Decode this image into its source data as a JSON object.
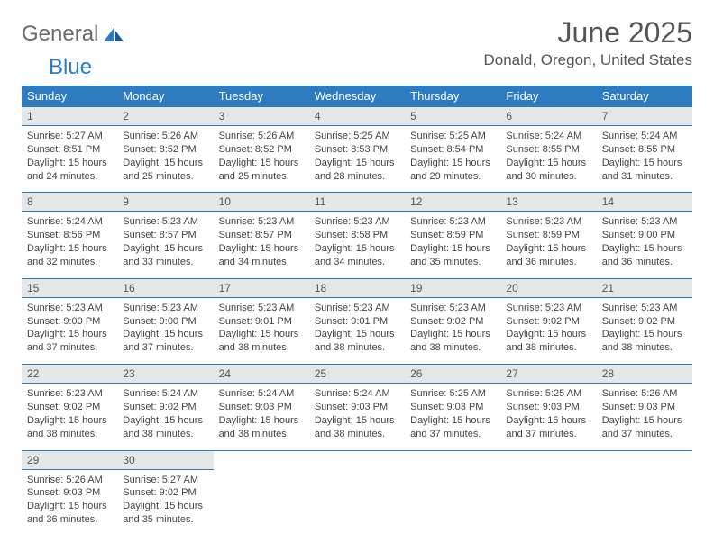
{
  "logo": {
    "word1": "General",
    "word2": "Blue"
  },
  "title": "June 2025",
  "location": "Donald, Oregon, United States",
  "colors": {
    "header_bg": "#2d7bc0",
    "header_text": "#ffffff",
    "daynum_bg": "#e6e6e6",
    "rule": "#2d7bc0",
    "body_text": "#444",
    "title_text": "#555"
  },
  "day_headers": [
    "Sunday",
    "Monday",
    "Tuesday",
    "Wednesday",
    "Thursday",
    "Friday",
    "Saturday"
  ],
  "weeks": [
    {
      "nums": [
        "1",
        "2",
        "3",
        "4",
        "5",
        "6",
        "7"
      ],
      "cells": [
        {
          "sunrise": "Sunrise: 5:27 AM",
          "sunset": "Sunset: 8:51 PM",
          "day1": "Daylight: 15 hours",
          "day2": "and 24 minutes."
        },
        {
          "sunrise": "Sunrise: 5:26 AM",
          "sunset": "Sunset: 8:52 PM",
          "day1": "Daylight: 15 hours",
          "day2": "and 25 minutes."
        },
        {
          "sunrise": "Sunrise: 5:26 AM",
          "sunset": "Sunset: 8:52 PM",
          "day1": "Daylight: 15 hours",
          "day2": "and 25 minutes."
        },
        {
          "sunrise": "Sunrise: 5:25 AM",
          "sunset": "Sunset: 8:53 PM",
          "day1": "Daylight: 15 hours",
          "day2": "and 28 minutes."
        },
        {
          "sunrise": "Sunrise: 5:25 AM",
          "sunset": "Sunset: 8:54 PM",
          "day1": "Daylight: 15 hours",
          "day2": "and 29 minutes."
        },
        {
          "sunrise": "Sunrise: 5:24 AM",
          "sunset": "Sunset: 8:55 PM",
          "day1": "Daylight: 15 hours",
          "day2": "and 30 minutes."
        },
        {
          "sunrise": "Sunrise: 5:24 AM",
          "sunset": "Sunset: 8:55 PM",
          "day1": "Daylight: 15 hours",
          "day2": "and 31 minutes."
        }
      ]
    },
    {
      "nums": [
        "8",
        "9",
        "10",
        "11",
        "12",
        "13",
        "14"
      ],
      "cells": [
        {
          "sunrise": "Sunrise: 5:24 AM",
          "sunset": "Sunset: 8:56 PM",
          "day1": "Daylight: 15 hours",
          "day2": "and 32 minutes."
        },
        {
          "sunrise": "Sunrise: 5:23 AM",
          "sunset": "Sunset: 8:57 PM",
          "day1": "Daylight: 15 hours",
          "day2": "and 33 minutes."
        },
        {
          "sunrise": "Sunrise: 5:23 AM",
          "sunset": "Sunset: 8:57 PM",
          "day1": "Daylight: 15 hours",
          "day2": "and 34 minutes."
        },
        {
          "sunrise": "Sunrise: 5:23 AM",
          "sunset": "Sunset: 8:58 PM",
          "day1": "Daylight: 15 hours",
          "day2": "and 34 minutes."
        },
        {
          "sunrise": "Sunrise: 5:23 AM",
          "sunset": "Sunset: 8:59 PM",
          "day1": "Daylight: 15 hours",
          "day2": "and 35 minutes."
        },
        {
          "sunrise": "Sunrise: 5:23 AM",
          "sunset": "Sunset: 8:59 PM",
          "day1": "Daylight: 15 hours",
          "day2": "and 36 minutes."
        },
        {
          "sunrise": "Sunrise: 5:23 AM",
          "sunset": "Sunset: 9:00 PM",
          "day1": "Daylight: 15 hours",
          "day2": "and 36 minutes."
        }
      ]
    },
    {
      "nums": [
        "15",
        "16",
        "17",
        "18",
        "19",
        "20",
        "21"
      ],
      "cells": [
        {
          "sunrise": "Sunrise: 5:23 AM",
          "sunset": "Sunset: 9:00 PM",
          "day1": "Daylight: 15 hours",
          "day2": "and 37 minutes."
        },
        {
          "sunrise": "Sunrise: 5:23 AM",
          "sunset": "Sunset: 9:00 PM",
          "day1": "Daylight: 15 hours",
          "day2": "and 37 minutes."
        },
        {
          "sunrise": "Sunrise: 5:23 AM",
          "sunset": "Sunset: 9:01 PM",
          "day1": "Daylight: 15 hours",
          "day2": "and 38 minutes."
        },
        {
          "sunrise": "Sunrise: 5:23 AM",
          "sunset": "Sunset: 9:01 PM",
          "day1": "Daylight: 15 hours",
          "day2": "and 38 minutes."
        },
        {
          "sunrise": "Sunrise: 5:23 AM",
          "sunset": "Sunset: 9:02 PM",
          "day1": "Daylight: 15 hours",
          "day2": "and 38 minutes."
        },
        {
          "sunrise": "Sunrise: 5:23 AM",
          "sunset": "Sunset: 9:02 PM",
          "day1": "Daylight: 15 hours",
          "day2": "and 38 minutes."
        },
        {
          "sunrise": "Sunrise: 5:23 AM",
          "sunset": "Sunset: 9:02 PM",
          "day1": "Daylight: 15 hours",
          "day2": "and 38 minutes."
        }
      ]
    },
    {
      "nums": [
        "22",
        "23",
        "24",
        "25",
        "26",
        "27",
        "28"
      ],
      "cells": [
        {
          "sunrise": "Sunrise: 5:23 AM",
          "sunset": "Sunset: 9:02 PM",
          "day1": "Daylight: 15 hours",
          "day2": "and 38 minutes."
        },
        {
          "sunrise": "Sunrise: 5:24 AM",
          "sunset": "Sunset: 9:02 PM",
          "day1": "Daylight: 15 hours",
          "day2": "and 38 minutes."
        },
        {
          "sunrise": "Sunrise: 5:24 AM",
          "sunset": "Sunset: 9:03 PM",
          "day1": "Daylight: 15 hours",
          "day2": "and 38 minutes."
        },
        {
          "sunrise": "Sunrise: 5:24 AM",
          "sunset": "Sunset: 9:03 PM",
          "day1": "Daylight: 15 hours",
          "day2": "and 38 minutes."
        },
        {
          "sunrise": "Sunrise: 5:25 AM",
          "sunset": "Sunset: 9:03 PM",
          "day1": "Daylight: 15 hours",
          "day2": "and 37 minutes."
        },
        {
          "sunrise": "Sunrise: 5:25 AM",
          "sunset": "Sunset: 9:03 PM",
          "day1": "Daylight: 15 hours",
          "day2": "and 37 minutes."
        },
        {
          "sunrise": "Sunrise: 5:26 AM",
          "sunset": "Sunset: 9:03 PM",
          "day1": "Daylight: 15 hours",
          "day2": "and 37 minutes."
        }
      ]
    },
    {
      "nums": [
        "29",
        "30",
        "",
        "",
        "",
        "",
        ""
      ],
      "cells": [
        {
          "sunrise": "Sunrise: 5:26 AM",
          "sunset": "Sunset: 9:03 PM",
          "day1": "Daylight: 15 hours",
          "day2": "and 36 minutes."
        },
        {
          "sunrise": "Sunrise: 5:27 AM",
          "sunset": "Sunset: 9:02 PM",
          "day1": "Daylight: 15 hours",
          "day2": "and 35 minutes."
        },
        null,
        null,
        null,
        null,
        null
      ]
    }
  ]
}
